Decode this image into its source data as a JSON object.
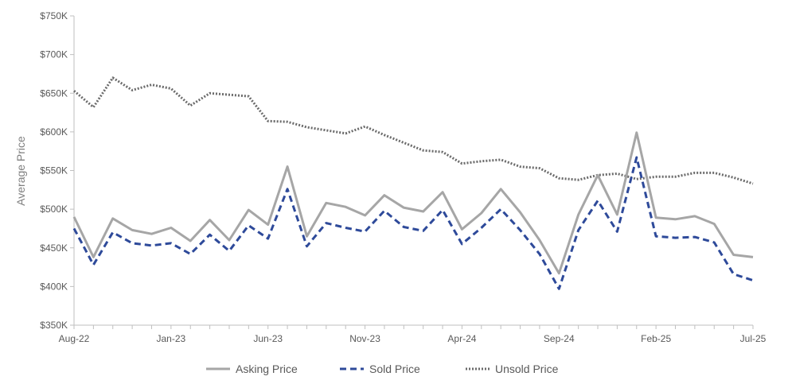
{
  "chart_data": {
    "type": "line",
    "title": "",
    "xlabel": "",
    "ylabel": "Average Price",
    "ylim": [
      350000,
      750000
    ],
    "yticks": [
      350000,
      400000,
      450000,
      500000,
      550000,
      600000,
      650000,
      700000,
      750000
    ],
    "ytick_labels": [
      "$350K",
      "$400K",
      "$450K",
      "$500K",
      "$550K",
      "$600K",
      "$650K",
      "$700K",
      "$750K"
    ],
    "x": [
      "Aug-22",
      "Sep-22",
      "Oct-22",
      "Nov-22",
      "Dec-22",
      "Jan-23",
      "Feb-23",
      "Mar-23",
      "Apr-23",
      "May-23",
      "Jun-23",
      "Jul-23",
      "Aug-23",
      "Sep-23",
      "Oct-23",
      "Nov-23",
      "Dec-23",
      "Jan-24",
      "Feb-24",
      "Mar-24",
      "Apr-24",
      "May-24",
      "Jun-24",
      "Jul-24",
      "Aug-24",
      "Sep-24",
      "Oct-24",
      "Nov-24",
      "Dec-24",
      "Jan-25",
      "Feb-25",
      "Mar-25",
      "Apr-25",
      "May-25",
      "Jun-25",
      "Jul-25"
    ],
    "xtick_labels": [
      "Aug-22",
      "Jan-23",
      "Jun-23",
      "Nov-23",
      "Apr-24",
      "Sep-24",
      "Feb-25",
      "Jul-25"
    ],
    "xtick_indices": [
      0,
      5,
      10,
      15,
      20,
      25,
      30,
      35
    ],
    "grid": false,
    "legend_position": "bottom",
    "series": [
      {
        "name": "Asking Price",
        "color": "#a6a6a6",
        "style": "solid",
        "values": [
          490000,
          438000,
          488000,
          473000,
          468000,
          476000,
          459000,
          486000,
          460000,
          499000,
          480000,
          555000,
          465000,
          508000,
          503000,
          492000,
          518000,
          502000,
          497000,
          522000,
          474000,
          495000,
          526000,
          496000,
          460000,
          417000,
          493000,
          544000,
          493000,
          599000,
          489000,
          487000,
          491000,
          481000,
          441000,
          438000
        ]
      },
      {
        "name": "Sold Price",
        "color": "#2e4a9a",
        "style": "dashed",
        "values": [
          475000,
          428000,
          470000,
          456000,
          453000,
          456000,
          442000,
          467000,
          446000,
          479000,
          462000,
          526000,
          452000,
          482000,
          476000,
          471000,
          498000,
          477000,
          472000,
          499000,
          455000,
          476000,
          500000,
          473000,
          442000,
          397000,
          473000,
          511000,
          471000,
          567000,
          465000,
          463000,
          464000,
          457000,
          416000,
          408000
        ]
      },
      {
        "name": "Unsold Price",
        "color": "#6b6b6b",
        "style": "dotted",
        "values": [
          653000,
          632000,
          670000,
          654000,
          661000,
          656000,
          634000,
          650000,
          648000,
          646000,
          614000,
          613000,
          606000,
          602000,
          598000,
          607000,
          596000,
          586000,
          576000,
          574000,
          559000,
          562000,
          564000,
          555000,
          553000,
          540000,
          538000,
          544000,
          546000,
          539000,
          542000,
          542000,
          547000,
          547000,
          541000,
          533000
        ]
      }
    ]
  }
}
